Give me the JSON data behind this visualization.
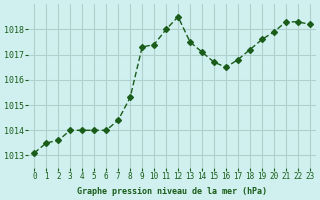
{
  "x": [
    0,
    1,
    2,
    3,
    4,
    5,
    6,
    7,
    8,
    9,
    10,
    11,
    12,
    13,
    14,
    15,
    16,
    17,
    18,
    19,
    20,
    21,
    22,
    23
  ],
  "y": [
    1013.1,
    1013.5,
    1013.6,
    1014.0,
    1014.0,
    1014.0,
    1014.0,
    1014.4,
    1015.3,
    1017.3,
    1017.4,
    1018.0,
    1018.5,
    1017.5,
    1017.1,
    1016.7,
    1016.5,
    1016.8,
    1017.2,
    1017.6,
    1017.9,
    1018.3,
    1018.3,
    1018.2
  ],
  "line_color": "#1a5c1a",
  "marker": "D",
  "marker_size": 3,
  "bg_color": "#cff0ee",
  "grid_color": "#b0d0cc",
  "xlabel": "Graphe pression niveau de la mer (hPa)",
  "xlabel_color": "#1a5c1a",
  "ylabel_color": "#1a5c1a",
  "tick_color": "#1a5c1a",
  "ylim_min": 1012.5,
  "ylim_max": 1019.0,
  "xlim_min": -0.5,
  "xlim_max": 23.5,
  "yticks": [
    1013,
    1014,
    1015,
    1016,
    1017,
    1018
  ],
  "xticks": [
    0,
    1,
    2,
    3,
    4,
    5,
    6,
    7,
    8,
    9,
    10,
    11,
    12,
    13,
    14,
    15,
    16,
    17,
    18,
    19,
    20,
    21,
    22,
    23
  ]
}
